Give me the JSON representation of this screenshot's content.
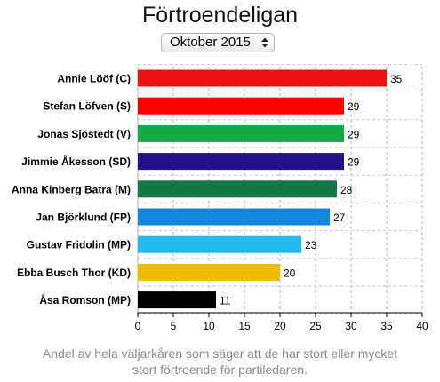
{
  "header": {
    "title": "Förtroendeligan",
    "period_selector": {
      "selected": "Oktober 2015"
    }
  },
  "footnote": {
    "line1": "Andel av hela väljarkåren som säger att de har stort eller mycket",
    "line2": "stort förtroende för partiledaren."
  },
  "chart_data": {
    "type": "bar",
    "orientation": "horizontal",
    "title": "Förtroendeligan",
    "categories": [
      "Annie Lööf (C)",
      "Stefan Löfven (S)",
      "Jonas Sjöstedt (V)",
      "Jimmie Åkesson (SD)",
      "Anna Kinberg Batra (M)",
      "Jan Björklund (FP)",
      "Gustav Fridolin (MP)",
      "Ebba Busch Thor (KD)",
      "Åsa Romson (MP)"
    ],
    "values": [
      35,
      29,
      29,
      29,
      28,
      27,
      23,
      20,
      11
    ],
    "colors": [
      "#ee1111",
      "#ff0000",
      "#11aa44",
      "#221188",
      "#117744",
      "#1188dd",
      "#22bbee",
      "#eebb00",
      "#000000"
    ],
    "xlim": [
      0,
      40
    ],
    "xticks": [
      0,
      5,
      10,
      15,
      20,
      25,
      30,
      35,
      40
    ],
    "grid": true,
    "xlabel": "",
    "ylabel": ""
  }
}
